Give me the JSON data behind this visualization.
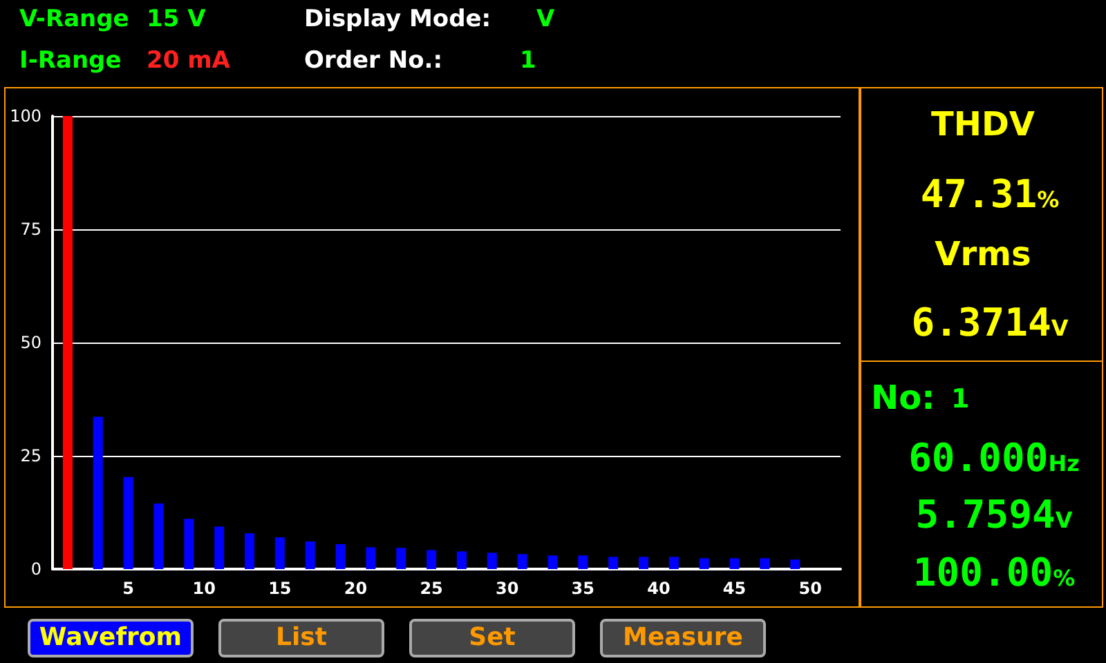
{
  "chart_data": {
    "type": "bar",
    "x": [
      1,
      3,
      5,
      7,
      9,
      11,
      13,
      15,
      17,
      19,
      21,
      23,
      25,
      27,
      29,
      31,
      33,
      35,
      37,
      39,
      41,
      43,
      45,
      47,
      49
    ],
    "values": [
      100,
      33.6,
      20.3,
      14.5,
      11.1,
      9.4,
      7.9,
      7.0,
      6.1,
      5.5,
      4.8,
      4.7,
      4.2,
      3.9,
      3.6,
      3.3,
      3.0,
      3.0,
      2.7,
      2.7,
      2.7,
      2.4,
      2.4,
      2.4,
      2.1
    ],
    "colors": [
      "#ff0000",
      "#0000ff",
      "#0000ff",
      "#0000ff",
      "#0000ff",
      "#0000ff",
      "#0000ff",
      "#0000ff",
      "#0000ff",
      "#0000ff",
      "#0000ff",
      "#0000ff",
      "#0000ff",
      "#0000ff",
      "#0000ff",
      "#0000ff",
      "#0000ff",
      "#0000ff",
      "#0000ff",
      "#0000ff",
      "#0000ff",
      "#0000ff",
      "#0000ff",
      "#0000ff",
      "#0000ff"
    ],
    "xlim": [
      0,
      52
    ],
    "xticks": [
      5,
      10,
      15,
      20,
      25,
      30,
      35,
      40,
      45,
      50
    ],
    "ylim": [
      0,
      100
    ],
    "yticks": [
      0,
      25,
      50,
      75,
      100
    ],
    "grid": "y",
    "annotations": [
      "V-Range",
      "15 V",
      "Display Mode:",
      "V",
      "I-Range",
      "20 mA",
      "Order No.:",
      "1",
      "THDV",
      "47.31%",
      "Vrms",
      "6.3714V",
      "No:",
      "1",
      "60.000Hz",
      "5.7594V",
      "100.00%",
      "Wavefrom",
      "List",
      "Set",
      "Measure"
    ]
  }
}
